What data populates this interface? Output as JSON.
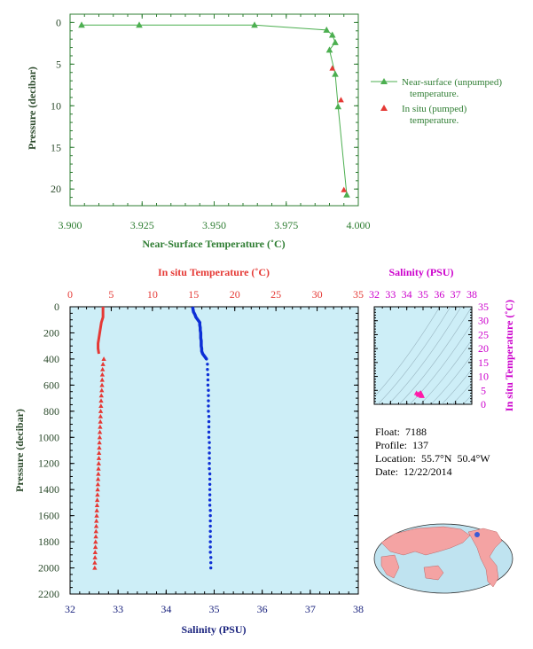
{
  "float_info": {
    "float": "Float:  7188",
    "profile": "Profile:  137",
    "location": "Location:  55.7°N  50.4°W",
    "date": "Date:  12/22/2014"
  },
  "chart_data": [
    {
      "type": "line",
      "xlabel": "Near-Surface Temperature (˚C)",
      "ylabel": "Pressure (decibar)",
      "xlim": [
        3.9,
        4.0
      ],
      "ylim": [
        22,
        -1
      ],
      "x_ticks": [
        "3.900",
        "3.925",
        "3.950",
        "3.975",
        "4.000"
      ],
      "y_ticks": [
        "0",
        "5",
        "10",
        "15",
        "20"
      ],
      "legend_position": "right",
      "series": [
        {
          "name": "Near-surface (unpumped) temperature.",
          "color": "#4caf50",
          "marker": "triangle",
          "x": [
            3.904,
            3.924,
            3.964,
            3.989,
            3.991,
            3.992,
            3.99,
            3.992,
            3.993,
            3.996
          ],
          "y": [
            0.3,
            0.3,
            0.3,
            0.9,
            1.5,
            2.4,
            3.3,
            6.2,
            10.1,
            20.7
          ]
        },
        {
          "name": "In situ (pumped) temperature.",
          "color": "#e53935",
          "marker": "triangle",
          "x": [
            3.991,
            3.994,
            3.995
          ],
          "y": [
            5.5,
            9.3,
            20.1
          ]
        }
      ]
    },
    {
      "type": "scatter",
      "ylabel": "Pressure (decibar)",
      "top_xlabel": "In situ Temperature (˚C)",
      "bottom_xlabel": "Salinity (PSU)",
      "temp_lim": [
        0,
        35
      ],
      "sal_lim": [
        32,
        38
      ],
      "pressure_lim": [
        2200,
        0
      ],
      "temp_ticks": [
        "0",
        "5",
        "10",
        "15",
        "20",
        "25",
        "30",
        "35"
      ],
      "sal_ticks": [
        "32",
        "33",
        "34",
        "35",
        "36",
        "37",
        "38"
      ],
      "pressure_ticks": [
        "0",
        "200",
        "400",
        "600",
        "800",
        "1000",
        "1200",
        "1400",
        "1600",
        "1800",
        "2000",
        "2200"
      ],
      "temperature": {
        "color": "#e53935",
        "pressure": [
          0,
          40,
          80,
          120,
          160,
          200,
          240,
          280,
          320,
          360,
          400,
          440,
          480,
          520,
          560,
          600,
          640,
          680,
          720,
          760,
          800,
          840,
          880,
          920,
          960,
          1000,
          1040,
          1080,
          1120,
          1160,
          1200,
          1240,
          1280,
          1320,
          1360,
          1400,
          1440,
          1480,
          1520,
          1560,
          1600,
          1640,
          1680,
          1720,
          1760,
          1800,
          1840,
          1880,
          1920,
          1960,
          2000
        ],
        "values": [
          4.0,
          4.0,
          4.0,
          3.8,
          3.7,
          3.6,
          3.5,
          3.4,
          3.4,
          3.5,
          4.1,
          4.0,
          3.95,
          3.92,
          3.9,
          3.88,
          3.85,
          3.8,
          3.77,
          3.75,
          3.72,
          3.7,
          3.68,
          3.65,
          3.62,
          3.6,
          3.57,
          3.55,
          3.52,
          3.5,
          3.48,
          3.45,
          3.43,
          3.4,
          3.38,
          3.35,
          3.33,
          3.3,
          3.28,
          3.25,
          3.23,
          3.2,
          3.18,
          3.15,
          3.13,
          3.1,
          3.08,
          3.05,
          3.03,
          3.0,
          3.0
        ]
      },
      "salinity": {
        "color": "#0d2fd6",
        "pressure": [
          0,
          20,
          40,
          60,
          80,
          100,
          120,
          140,
          160,
          180,
          200,
          220,
          240,
          260,
          280,
          300,
          320,
          340,
          360,
          380,
          400,
          440,
          480,
          520,
          560,
          600,
          640,
          680,
          720,
          760,
          800,
          840,
          880,
          920,
          960,
          1000,
          1040,
          1080,
          1120,
          1160,
          1200,
          1240,
          1280,
          1320,
          1360,
          1400,
          1440,
          1480,
          1520,
          1560,
          1600,
          1640,
          1680,
          1720,
          1760,
          1800,
          1840,
          1880,
          1920,
          1960,
          2000
        ],
        "values": [
          34.55,
          34.56,
          34.57,
          34.6,
          34.62,
          34.66,
          34.7,
          34.7,
          34.71,
          34.71,
          34.72,
          34.72,
          34.72,
          34.73,
          34.73,
          34.73,
          34.74,
          34.74,
          34.76,
          34.8,
          34.84,
          34.86,
          34.86,
          34.87,
          34.87,
          34.87,
          34.88,
          34.88,
          34.88,
          34.88,
          34.88,
          34.89,
          34.89,
          34.89,
          34.89,
          34.89,
          34.9,
          34.9,
          34.9,
          34.9,
          34.9,
          34.9,
          34.91,
          34.91,
          34.91,
          34.91,
          34.91,
          34.91,
          34.91,
          34.92,
          34.92,
          34.92,
          34.92,
          34.92,
          34.92,
          34.92,
          34.92,
          34.92,
          34.93,
          34.93,
          34.93
        ]
      }
    },
    {
      "type": "scatter",
      "top_xlabel": "Salinity (PSU)",
      "right_ylabel": "In situ Temperature (˚C)",
      "xlim": [
        32,
        38
      ],
      "ylim": [
        0,
        35
      ],
      "x_ticks": [
        "32",
        "33",
        "34",
        "35",
        "36",
        "37",
        "38"
      ],
      "y_ticks": [
        "0",
        "5",
        "10",
        "15",
        "20",
        "25",
        "30",
        "35"
      ],
      "points": {
        "color": "#ff1aa8",
        "salinity": [
          34.6,
          34.7,
          34.75,
          34.8,
          34.85,
          34.88,
          34.9,
          34.92,
          34.95,
          34.87,
          34.8
        ],
        "temperature": [
          4.0,
          3.6,
          3.4,
          3.5,
          4.1,
          3.9,
          3.6,
          3.3,
          3.0,
          3.1,
          3.9
        ]
      }
    },
    {
      "type": "map",
      "marker_color": "#3a5bd6",
      "location": [
        55.7,
        -50.4
      ]
    }
  ]
}
